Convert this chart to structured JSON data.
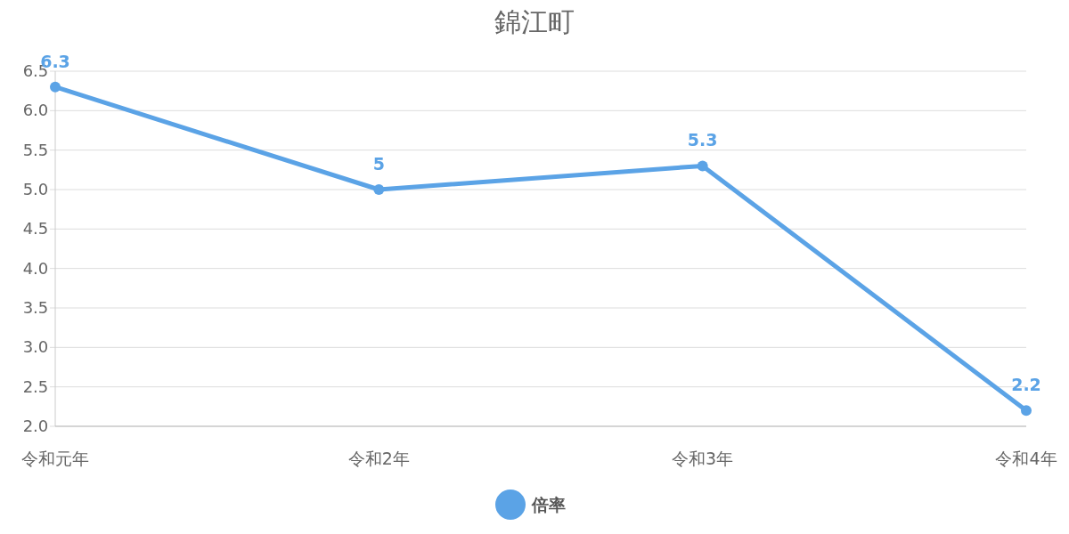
{
  "chart_data": {
    "type": "line",
    "title": "錦江町",
    "categories": [
      "令和元年",
      "令和2年",
      "令和3年",
      "令和4年"
    ],
    "series": [
      {
        "name": "倍率",
        "color": "#5ba3e6",
        "values": [
          6.3,
          5,
          5.3,
          2.2
        ]
      }
    ],
    "ylim": [
      2,
      6.5
    ],
    "yticks": [
      {
        "value": 2,
        "label": "2.0"
      },
      {
        "value": 2.5,
        "label": "2.5"
      },
      {
        "value": 3,
        "label": "3.0"
      },
      {
        "value": 3.5,
        "label": "3.5"
      },
      {
        "value": 4,
        "label": "4.0"
      },
      {
        "value": 4.5,
        "label": "4.5"
      },
      {
        "value": 5,
        "label": "5.0"
      },
      {
        "value": 5.5,
        "label": "5.5"
      },
      {
        "value": 6,
        "label": "6.0"
      },
      {
        "value": 6.5,
        "label": "6.5"
      }
    ],
    "grid": "y",
    "legend": "bottom",
    "marker": "circle",
    "line_style": "solid",
    "data_labels": true
  }
}
